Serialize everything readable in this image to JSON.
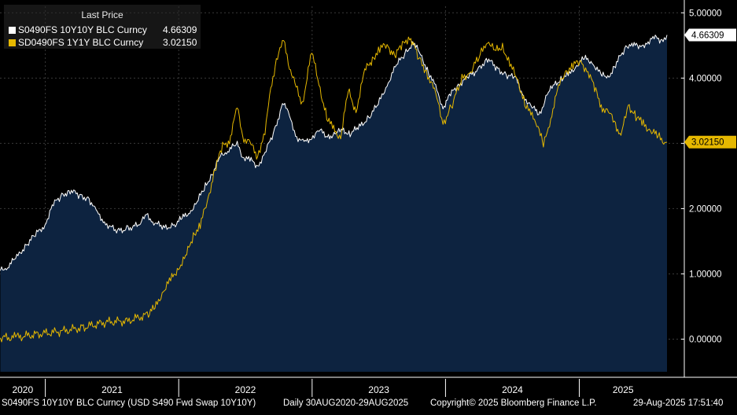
{
  "legend": {
    "title": "Last Price",
    "items": [
      {
        "label": "S0490FS 10Y10Y BLC Curncy",
        "value": "4.66309",
        "color": "#ffffff"
      },
      {
        "label": "SD0490FS 1Y1Y BLC Curncy",
        "value": "3.02150",
        "color": "#e6b800"
      }
    ]
  },
  "footer": {
    "description": "S0490FS 10Y10Y BLC Curncy (USD S490 Fwd Swap 10Y10Y)",
    "range": "Daily 30AUG2020-29AUG2025",
    "copyright": "Copyright© 2025 Bloomberg Finance L.P.",
    "timestamp": "29-Aug-2025 17:51:40"
  },
  "colors": {
    "background": "#000000",
    "area_fill": "#0d2340",
    "series_10y10y": "#ffffff",
    "series_1y1y": "#e6b800",
    "grid": "#3a3a3a"
  },
  "chart_data": {
    "type": "area",
    "x_axis": {
      "tick_labels": [
        "2020",
        "2021",
        "2022",
        "2023",
        "2024",
        "2025"
      ],
      "range": [
        "2020-08-30",
        "2025-08-29"
      ]
    },
    "y_axis": {
      "position": "right",
      "range": [
        -0.5,
        5.1
      ],
      "ticks": [
        0,
        1,
        2,
        3,
        4,
        5
      ],
      "tick_labels": [
        "0.00000",
        "1.00000",
        "2.00000",
        "3.00000",
        "4.00000",
        "5.00000"
      ]
    },
    "grid": true,
    "legend_position": "top-left",
    "last_value_labels": [
      "4.66309",
      "3.02150"
    ],
    "series": [
      {
        "name": "S0490FS 10Y10Y BLC Curncy",
        "style": "white line with navy area fill",
        "points": [
          [
            "2020-08-31",
            1.05
          ],
          [
            "2020-09-20",
            1.12
          ],
          [
            "2020-10-15",
            1.25
          ],
          [
            "2020-11-10",
            1.45
          ],
          [
            "2020-12-05",
            1.6
          ],
          [
            "2020-12-31",
            1.75
          ],
          [
            "2021-01-20",
            2.05
          ],
          [
            "2021-02-15",
            2.2
          ],
          [
            "2021-03-10",
            2.28
          ],
          [
            "2021-04-05",
            2.2
          ],
          [
            "2021-05-01",
            2.15
          ],
          [
            "2021-05-20",
            1.95
          ],
          [
            "2021-06-15",
            1.78
          ],
          [
            "2021-07-15",
            1.65
          ],
          [
            "2021-08-15",
            1.7
          ],
          [
            "2021-09-15",
            1.75
          ],
          [
            "2021-10-05",
            1.9
          ],
          [
            "2021-10-25",
            1.8
          ],
          [
            "2021-11-20",
            1.7
          ],
          [
            "2021-12-20",
            1.75
          ],
          [
            "2022-01-10",
            1.85
          ],
          [
            "2022-01-31",
            1.95
          ],
          [
            "2022-02-20",
            2.1
          ],
          [
            "2022-03-15",
            2.35
          ],
          [
            "2022-04-05",
            2.55
          ],
          [
            "2022-04-25",
            2.8
          ],
          [
            "2022-05-15",
            2.9
          ],
          [
            "2022-06-10",
            2.98
          ],
          [
            "2022-06-25",
            2.8
          ],
          [
            "2022-07-15",
            2.75
          ],
          [
            "2022-08-05",
            2.65
          ],
          [
            "2022-08-25",
            2.85
          ],
          [
            "2022-09-20",
            3.2
          ],
          [
            "2022-10-15",
            3.65
          ],
          [
            "2022-10-31",
            3.4
          ],
          [
            "2022-11-20",
            3.1
          ],
          [
            "2022-12-10",
            3.0
          ],
          [
            "2022-12-31",
            3.1
          ],
          [
            "2023-01-20",
            3.2
          ],
          [
            "2023-02-15",
            3.1
          ],
          [
            "2023-03-05",
            3.15
          ],
          [
            "2023-03-25",
            3.2
          ],
          [
            "2023-04-15",
            3.15
          ],
          [
            "2023-05-10",
            3.25
          ],
          [
            "2023-06-05",
            3.4
          ],
          [
            "2023-07-01",
            3.6
          ],
          [
            "2023-07-25",
            3.9
          ],
          [
            "2023-08-20",
            4.2
          ],
          [
            "2023-09-15",
            4.4
          ],
          [
            "2023-10-05",
            4.55
          ],
          [
            "2023-10-25",
            4.35
          ],
          [
            "2023-11-15",
            4.1
          ],
          [
            "2023-12-05",
            3.85
          ],
          [
            "2023-12-25",
            3.55
          ],
          [
            "2024-01-15",
            3.75
          ],
          [
            "2024-02-05",
            3.9
          ],
          [
            "2024-03-01",
            4.0
          ],
          [
            "2024-04-01",
            4.15
          ],
          [
            "2024-04-25",
            4.3
          ],
          [
            "2024-05-20",
            4.15
          ],
          [
            "2024-06-15",
            4.05
          ],
          [
            "2024-07-10",
            4.0
          ],
          [
            "2024-08-05",
            3.7
          ],
          [
            "2024-08-25",
            3.55
          ],
          [
            "2024-09-15",
            3.45
          ],
          [
            "2024-10-05",
            3.75
          ],
          [
            "2024-10-25",
            3.9
          ],
          [
            "2024-11-15",
            4.0
          ],
          [
            "2024-12-05",
            4.05
          ],
          [
            "2024-12-25",
            4.2
          ],
          [
            "2025-01-15",
            4.3
          ],
          [
            "2025-02-05",
            4.25
          ],
          [
            "2025-03-01",
            4.05
          ],
          [
            "2025-03-20",
            4.0
          ],
          [
            "2025-04-10",
            4.2
          ],
          [
            "2025-05-05",
            4.45
          ],
          [
            "2025-05-25",
            4.55
          ],
          [
            "2025-06-15",
            4.45
          ],
          [
            "2025-07-05",
            4.55
          ],
          [
            "2025-07-25",
            4.62
          ],
          [
            "2025-08-15",
            4.58
          ],
          [
            "2025-08-29",
            4.66
          ]
        ]
      },
      {
        "name": "SD0490FS 1Y1Y BLC Curncy",
        "style": "yellow line",
        "points": [
          [
            "2020-08-31",
            0.02
          ],
          [
            "2020-10-15",
            0.03
          ],
          [
            "2020-12-15",
            0.08
          ],
          [
            "2021-02-15",
            0.12
          ],
          [
            "2021-04-15",
            0.18
          ],
          [
            "2021-06-15",
            0.26
          ],
          [
            "2021-08-15",
            0.28
          ],
          [
            "2021-10-10",
            0.38
          ],
          [
            "2021-10-31",
            0.5
          ],
          [
            "2021-11-20",
            0.75
          ],
          [
            "2021-12-10",
            0.9
          ],
          [
            "2021-12-31",
            1.1
          ],
          [
            "2022-01-20",
            1.25
          ],
          [
            "2022-02-10",
            1.6
          ],
          [
            "2022-03-01",
            1.75
          ],
          [
            "2022-03-20",
            2.1
          ],
          [
            "2022-04-10",
            2.6
          ],
          [
            "2022-05-01",
            2.95
          ],
          [
            "2022-05-20",
            3.05
          ],
          [
            "2022-06-10",
            3.55
          ],
          [
            "2022-06-25",
            3.1
          ],
          [
            "2022-07-15",
            3.0
          ],
          [
            "2022-08-05",
            2.8
          ],
          [
            "2022-08-25",
            3.2
          ],
          [
            "2022-09-10",
            3.8
          ],
          [
            "2022-09-25",
            4.3
          ],
          [
            "2022-10-15",
            4.55
          ],
          [
            "2022-10-31",
            4.2
          ],
          [
            "2022-11-15",
            3.9
          ],
          [
            "2022-12-05",
            3.6
          ],
          [
            "2022-12-31",
            4.4
          ],
          [
            "2023-01-20",
            3.9
          ],
          [
            "2023-02-10",
            3.4
          ],
          [
            "2023-03-01",
            3.2
          ],
          [
            "2023-03-20",
            3.1
          ],
          [
            "2023-04-10",
            3.8
          ],
          [
            "2023-05-01",
            3.5
          ],
          [
            "2023-05-25",
            4.1
          ],
          [
            "2023-06-15",
            4.3
          ],
          [
            "2023-07-05",
            4.45
          ],
          [
            "2023-07-25",
            4.5
          ],
          [
            "2023-08-15",
            4.35
          ],
          [
            "2023-09-05",
            4.5
          ],
          [
            "2023-09-25",
            4.65
          ],
          [
            "2023-10-20",
            4.3
          ],
          [
            "2023-11-10",
            4.1
          ],
          [
            "2023-12-05",
            3.75
          ],
          [
            "2023-12-25",
            3.3
          ],
          [
            "2024-01-20",
            3.6
          ],
          [
            "2024-02-15",
            4.0
          ],
          [
            "2024-03-10",
            4.1
          ],
          [
            "2024-04-05",
            4.35
          ],
          [
            "2024-04-25",
            4.6
          ],
          [
            "2024-05-15",
            4.4
          ],
          [
            "2024-06-05",
            4.5
          ],
          [
            "2024-06-25",
            4.2
          ],
          [
            "2024-07-15",
            4.0
          ],
          [
            "2024-08-05",
            3.6
          ],
          [
            "2024-08-25",
            3.4
          ],
          [
            "2024-09-10",
            3.3
          ],
          [
            "2024-09-25",
            2.95
          ],
          [
            "2024-10-15",
            3.4
          ],
          [
            "2024-11-05",
            3.85
          ],
          [
            "2024-11-25",
            4.1
          ],
          [
            "2024-12-15",
            4.2
          ],
          [
            "2025-01-05",
            4.25
          ],
          [
            "2025-01-25",
            4.1
          ],
          [
            "2025-02-15",
            3.8
          ],
          [
            "2025-03-05",
            3.55
          ],
          [
            "2025-03-25",
            3.45
          ],
          [
            "2025-04-10",
            3.3
          ],
          [
            "2025-04-25",
            3.1
          ],
          [
            "2025-05-15",
            3.6
          ],
          [
            "2025-06-05",
            3.4
          ],
          [
            "2025-06-25",
            3.3
          ],
          [
            "2025-07-15",
            3.2
          ],
          [
            "2025-08-05",
            3.1
          ],
          [
            "2025-08-20",
            3.05
          ],
          [
            "2025-08-29",
            3.02
          ]
        ]
      }
    ]
  }
}
